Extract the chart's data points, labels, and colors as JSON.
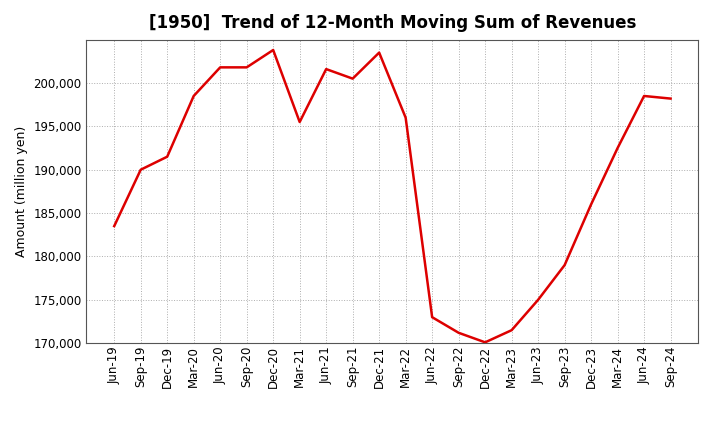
{
  "title": "[1950]  Trend of 12-Month Moving Sum of Revenues",
  "ylabel": "Amount (million yen)",
  "line_color": "#dd0000",
  "line_width": 1.8,
  "background_color": "#ffffff",
  "grid_color": "#999999",
  "ylim": [
    170000,
    205000
  ],
  "yticks": [
    170000,
    175000,
    180000,
    185000,
    190000,
    195000,
    200000
  ],
  "labels": [
    "Jun-19",
    "Sep-19",
    "Dec-19",
    "Mar-20",
    "Jun-20",
    "Sep-20",
    "Dec-20",
    "Mar-21",
    "Jun-21",
    "Sep-21",
    "Dec-21",
    "Mar-22",
    "Jun-22",
    "Sep-22",
    "Dec-22",
    "Mar-23",
    "Jun-23",
    "Sep-23",
    "Dec-23",
    "Mar-24",
    "Jun-24",
    "Sep-24"
  ],
  "values": [
    183500,
    190000,
    191500,
    198500,
    201800,
    201800,
    203800,
    195500,
    201600,
    200500,
    203500,
    196000,
    173000,
    171200,
    170100,
    171500,
    175000,
    179000,
    186000,
    192500,
    198500,
    198200
  ],
  "title_fontsize": 12,
  "ylabel_fontsize": 9,
  "tick_fontsize": 8.5
}
